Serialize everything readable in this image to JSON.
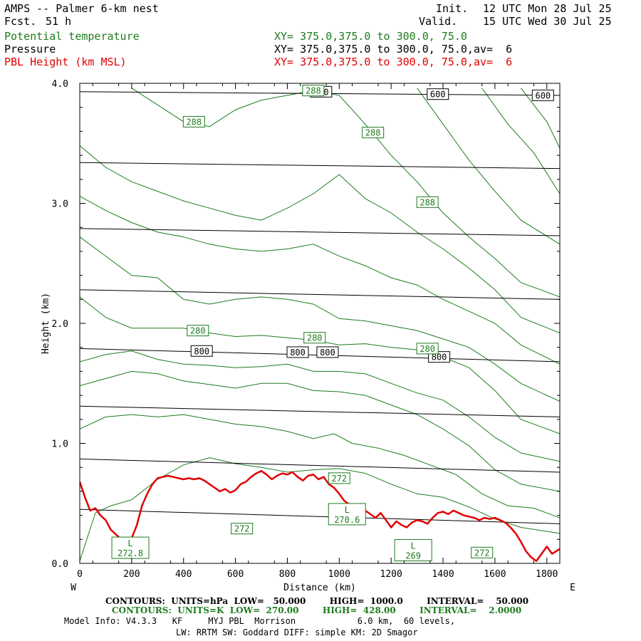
{
  "header": {
    "title": "AMPS -- Palmer 6-km nest",
    "fcst_label": "Fcst.",
    "fcst_value": "51 h",
    "init_label": "Init.",
    "init_value": "12 UTC Mon 28 Jul 25",
    "valid_label": "Valid.",
    "valid_value": "15 UTC Wed 30 Jul 25",
    "fields": [
      {
        "name": "Potential temperature",
        "xy": "XY= 375.0,375.0 to 300.0, 75.0",
        "color": "#1e7b1e"
      },
      {
        "name": "Pressure",
        "xy": "XY= 375.0,375.0 to 300.0, 75.0,av=  6",
        "color": "#000000"
      },
      {
        "name": "PBL Height (km MSL)",
        "xy": "XY= 375.0,375.0 to 300.0, 75.0,av=  6",
        "color": "#e00000"
      }
    ]
  },
  "chart_data": {
    "type": "line",
    "xlabel": "Distance (km)",
    "ylabel": "Height (km)",
    "xlim": [
      0,
      1850
    ],
    "ylim": [
      0,
      4.0
    ],
    "x_ticks": [
      "0",
      "200",
      "400",
      "600",
      "800",
      "1000",
      "1200",
      "1400",
      "1600",
      "1800"
    ],
    "y_ticks": [
      "0.0",
      "1.0",
      "2.0",
      "3.0",
      "4.0"
    ],
    "x_start_label": "W",
    "x_end_label": "E",
    "pressure_isobars": [
      {
        "level": 600,
        "y_start": 3.93,
        "y_end": 3.9
      },
      {
        "level": 650,
        "y_start": 3.34,
        "y_end": 3.29
      },
      {
        "level": 700,
        "y_start": 2.79,
        "y_end": 2.73
      },
      {
        "level": 750,
        "y_start": 2.28,
        "y_end": 2.2
      },
      {
        "level": 800,
        "y_start": 1.79,
        "y_end": 1.68
      },
      {
        "level": 850,
        "y_start": 1.31,
        "y_end": 1.22
      },
      {
        "level": 900,
        "y_start": 0.87,
        "y_end": 0.76
      },
      {
        "level": 950,
        "y_start": 0.45,
        "y_end": 0.33
      }
    ],
    "pressure_labels": [
      {
        "text": "600",
        "x": 930,
        "y": 3.93
      },
      {
        "text": "600",
        "x": 1380,
        "y": 3.91
      },
      {
        "text": "600",
        "x": 1785,
        "y": 3.9
      },
      {
        "text": "800",
        "x": 470,
        "y": 1.77
      },
      {
        "text": "800",
        "x": 840,
        "y": 1.76
      },
      {
        "text": "800",
        "x": 955,
        "y": 1.76
      },
      {
        "text": "800",
        "x": 1385,
        "y": 1.72
      }
    ],
    "theta_labels": [
      {
        "text": "288",
        "x": 440,
        "y": 3.68
      },
      {
        "text": "288",
        "x": 900,
        "y": 3.94
      },
      {
        "text": "288",
        "x": 1130,
        "y": 3.59
      },
      {
        "text": "288",
        "x": 1340,
        "y": 3.01
      },
      {
        "text": "280",
        "x": 455,
        "y": 1.94
      },
      {
        "text": "280",
        "x": 905,
        "y": 1.88
      },
      {
        "text": "280",
        "x": 1340,
        "y": 1.79
      },
      {
        "text": "272",
        "x": 625,
        "y": 0.29
      },
      {
        "text": "272",
        "x": 1000,
        "y": 0.71
      },
      {
        "text": "272",
        "x": 1550,
        "y": 0.09
      }
    ],
    "extrema": [
      {
        "mark": "L",
        "value": "272.8",
        "x": 195,
        "y": 0.13
      },
      {
        "mark": "L",
        "value": "270.6",
        "x": 1030,
        "y": 0.41
      },
      {
        "mark": "L",
        "value": "269",
        "x": 1285,
        "y": 0.11
      }
    ],
    "theta_contours": [
      [
        [
          0,
          0.02
        ],
        [
          60,
          0.42
        ],
        [
          120,
          0.48
        ],
        [
          200,
          0.53
        ],
        [
          300,
          0.7
        ],
        [
          400,
          0.82
        ],
        [
          500,
          0.88
        ],
        [
          600,
          0.83
        ],
        [
          700,
          0.8
        ],
        [
          800,
          0.76
        ],
        [
          900,
          0.78
        ],
        [
          1000,
          0.79
        ],
        [
          1100,
          0.75
        ],
        [
          1200,
          0.66
        ],
        [
          1300,
          0.58
        ],
        [
          1400,
          0.55
        ],
        [
          1500,
          0.47
        ],
        [
          1600,
          0.37
        ],
        [
          1700,
          0.3
        ],
        [
          1850,
          0.25
        ]
      ],
      [
        [
          0,
          1.12
        ],
        [
          100,
          1.22
        ],
        [
          200,
          1.24
        ],
        [
          300,
          1.22
        ],
        [
          400,
          1.24
        ],
        [
          500,
          1.2
        ],
        [
          600,
          1.16
        ],
        [
          700,
          1.14
        ],
        [
          800,
          1.1
        ],
        [
          900,
          1.04
        ],
        [
          980,
          1.08
        ],
        [
          1050,
          1.0
        ],
        [
          1150,
          0.96
        ],
        [
          1250,
          0.9
        ],
        [
          1350,
          0.82
        ],
        [
          1450,
          0.74
        ],
        [
          1550,
          0.58
        ],
        [
          1650,
          0.48
        ],
        [
          1750,
          0.46
        ],
        [
          1850,
          0.38
        ]
      ],
      [
        [
          0,
          1.48
        ],
        [
          100,
          1.54
        ],
        [
          200,
          1.6
        ],
        [
          300,
          1.58
        ],
        [
          400,
          1.52
        ],
        [
          500,
          1.49
        ],
        [
          600,
          1.46
        ],
        [
          700,
          1.5
        ],
        [
          800,
          1.5
        ],
        [
          900,
          1.44
        ],
        [
          1000,
          1.43
        ],
        [
          1100,
          1.4
        ],
        [
          1200,
          1.32
        ],
        [
          1300,
          1.24
        ],
        [
          1400,
          1.12
        ],
        [
          1500,
          0.98
        ],
        [
          1600,
          0.78
        ],
        [
          1700,
          0.66
        ],
        [
          1850,
          0.6
        ]
      ],
      [
        [
          0,
          1.68
        ],
        [
          100,
          1.74
        ],
        [
          200,
          1.77
        ],
        [
          300,
          1.7
        ],
        [
          400,
          1.66
        ],
        [
          500,
          1.65
        ],
        [
          600,
          1.63
        ],
        [
          700,
          1.64
        ],
        [
          800,
          1.66
        ],
        [
          900,
          1.6
        ],
        [
          1000,
          1.6
        ],
        [
          1100,
          1.58
        ],
        [
          1200,
          1.5
        ],
        [
          1300,
          1.42
        ],
        [
          1400,
          1.36
        ],
        [
          1500,
          1.22
        ],
        [
          1600,
          1.05
        ],
        [
          1700,
          0.92
        ],
        [
          1850,
          0.85
        ]
      ],
      [
        [
          0,
          2.22
        ],
        [
          100,
          2.05
        ],
        [
          200,
          1.96
        ],
        [
          300,
          1.96
        ],
        [
          400,
          1.96
        ],
        [
          500,
          1.92
        ],
        [
          600,
          1.89
        ],
        [
          700,
          1.9
        ],
        [
          800,
          1.88
        ],
        [
          900,
          1.86
        ],
        [
          1000,
          1.82
        ],
        [
          1100,
          1.83
        ],
        [
          1200,
          1.8
        ],
        [
          1300,
          1.78
        ],
        [
          1400,
          1.72
        ],
        [
          1500,
          1.63
        ],
        [
          1600,
          1.44
        ],
        [
          1700,
          1.2
        ],
        [
          1850,
          1.08
        ]
      ],
      [
        [
          0,
          2.72
        ],
        [
          100,
          2.56
        ],
        [
          200,
          2.4
        ],
        [
          300,
          2.38
        ],
        [
          400,
          2.2
        ],
        [
          500,
          2.16
        ],
        [
          600,
          2.2
        ],
        [
          700,
          2.22
        ],
        [
          800,
          2.2
        ],
        [
          900,
          2.16
        ],
        [
          1000,
          2.04
        ],
        [
          1100,
          2.02
        ],
        [
          1200,
          1.98
        ],
        [
          1300,
          1.94
        ],
        [
          1400,
          1.87
        ],
        [
          1500,
          1.8
        ],
        [
          1600,
          1.66
        ],
        [
          1700,
          1.5
        ],
        [
          1850,
          1.35
        ]
      ],
      [
        [
          0,
          3.06
        ],
        [
          100,
          2.94
        ],
        [
          200,
          2.84
        ],
        [
          300,
          2.76
        ],
        [
          400,
          2.72
        ],
        [
          500,
          2.66
        ],
        [
          600,
          2.62
        ],
        [
          700,
          2.6
        ],
        [
          800,
          2.62
        ],
        [
          900,
          2.66
        ],
        [
          1000,
          2.56
        ],
        [
          1100,
          2.48
        ],
        [
          1200,
          2.38
        ],
        [
          1300,
          2.32
        ],
        [
          1400,
          2.2
        ],
        [
          1500,
          2.1
        ],
        [
          1600,
          2.0
        ],
        [
          1700,
          1.82
        ],
        [
          1850,
          1.66
        ]
      ],
      [
        [
          0,
          3.48
        ],
        [
          100,
          3.3
        ],
        [
          200,
          3.18
        ],
        [
          300,
          3.1
        ],
        [
          400,
          3.02
        ],
        [
          500,
          2.96
        ],
        [
          600,
          2.9
        ],
        [
          700,
          2.86
        ],
        [
          800,
          2.96
        ],
        [
          900,
          3.08
        ],
        [
          1000,
          3.24
        ],
        [
          1100,
          3.04
        ],
        [
          1200,
          2.92
        ],
        [
          1300,
          2.76
        ],
        [
          1400,
          2.62
        ],
        [
          1500,
          2.46
        ],
        [
          1600,
          2.28
        ],
        [
          1700,
          2.05
        ],
        [
          1850,
          1.92
        ]
      ],
      [
        [
          200,
          3.96
        ],
        [
          300,
          3.82
        ],
        [
          400,
          3.68
        ],
        [
          500,
          3.64
        ],
        [
          600,
          3.78
        ],
        [
          700,
          3.86
        ],
        [
          800,
          3.9
        ],
        [
          900,
          3.94
        ],
        [
          1000,
          3.9
        ],
        [
          1100,
          3.66
        ],
        [
          1200,
          3.4
        ],
        [
          1300,
          3.18
        ],
        [
          1400,
          2.92
        ],
        [
          1500,
          2.72
        ],
        [
          1600,
          2.54
        ],
        [
          1700,
          2.34
        ],
        [
          1850,
          2.22
        ]
      ],
      [
        [
          1300,
          3.96
        ],
        [
          1400,
          3.66
        ],
        [
          1500,
          3.36
        ],
        [
          1600,
          3.1
        ],
        [
          1700,
          2.86
        ],
        [
          1850,
          2.66
        ]
      ],
      [
        [
          1550,
          3.96
        ],
        [
          1650,
          3.66
        ],
        [
          1750,
          3.42
        ],
        [
          1850,
          3.08
        ]
      ],
      [
        [
          1700,
          3.96
        ],
        [
          1800,
          3.68
        ],
        [
          1850,
          3.46
        ]
      ]
    ],
    "series": [
      {
        "name": "PBL Height (km MSL)",
        "color": "#e00000",
        "x": [
          0,
          20,
          40,
          60,
          80,
          100,
          120,
          140,
          160,
          180,
          200,
          220,
          240,
          260,
          280,
          300,
          320,
          340,
          360,
          380,
          400,
          420,
          440,
          460,
          480,
          500,
          520,
          540,
          560,
          580,
          600,
          620,
          640,
          660,
          680,
          700,
          720,
          740,
          760,
          780,
          800,
          820,
          840,
          860,
          880,
          900,
          920,
          940,
          960,
          980,
          1000,
          1020,
          1040,
          1060,
          1080,
          1100,
          1120,
          1140,
          1160,
          1180,
          1200,
          1220,
          1240,
          1260,
          1280,
          1300,
          1320,
          1340,
          1360,
          1380,
          1400,
          1420,
          1440,
          1460,
          1480,
          1500,
          1520,
          1540,
          1560,
          1580,
          1600,
          1620,
          1640,
          1660,
          1680,
          1700,
          1720,
          1740,
          1760,
          1780,
          1800,
          1820,
          1850
        ],
        "values": [
          0.68,
          0.55,
          0.44,
          0.46,
          0.4,
          0.36,
          0.28,
          0.24,
          0.2,
          0.16,
          0.21,
          0.32,
          0.48,
          0.58,
          0.66,
          0.71,
          0.72,
          0.73,
          0.72,
          0.71,
          0.7,
          0.71,
          0.7,
          0.71,
          0.69,
          0.66,
          0.63,
          0.6,
          0.62,
          0.59,
          0.61,
          0.66,
          0.68,
          0.72,
          0.75,
          0.77,
          0.74,
          0.7,
          0.73,
          0.75,
          0.74,
          0.76,
          0.72,
          0.69,
          0.73,
          0.74,
          0.7,
          0.72,
          0.66,
          0.63,
          0.58,
          0.52,
          0.49,
          0.45,
          0.48,
          0.44,
          0.41,
          0.38,
          0.42,
          0.36,
          0.3,
          0.35,
          0.32,
          0.3,
          0.34,
          0.36,
          0.35,
          0.33,
          0.38,
          0.42,
          0.43,
          0.41,
          0.44,
          0.42,
          0.4,
          0.39,
          0.38,
          0.36,
          0.38,
          0.37,
          0.38,
          0.36,
          0.34,
          0.3,
          0.25,
          0.18,
          0.1,
          0.05,
          0.02,
          0.08,
          0.14,
          0.08,
          0.12
        ]
      }
    ]
  },
  "footer": {
    "line1": "CONTOURS:  UNITS=hPa  LOW=   50.000        HIGH=  1000.0        INTERVAL=    50.000",
    "line2": "CONTOURS:  UNITS=K  LOW=  270.00        HIGH=  428.00        INTERVAL=    2.0000",
    "model_info": "Model Info: V4.3.3   KF     MYJ PBL  Morrison            6.0 km,  60 levels,",
    "model_info2": "LW: RRTM SW: Goddard DIFF: simple KM: 2D Smagor"
  }
}
